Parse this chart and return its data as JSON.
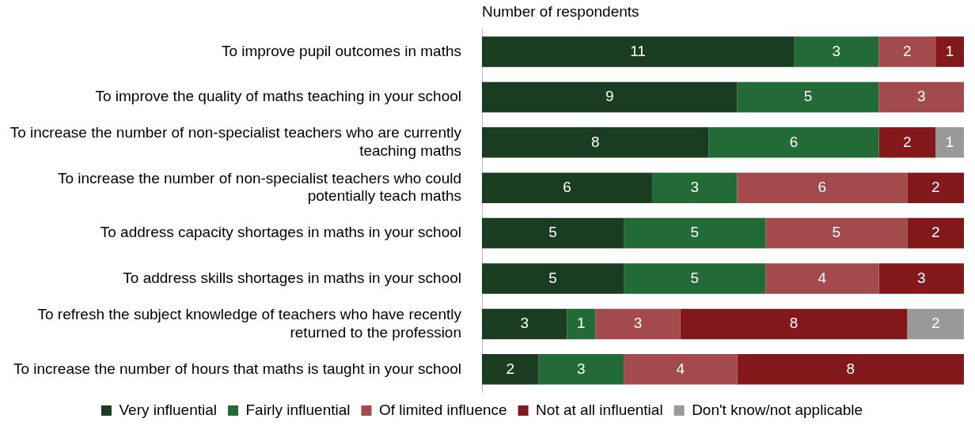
{
  "chart_data": {
    "type": "bar",
    "orientation": "horizontal",
    "stacked": true,
    "xlabel": "Number of respondents",
    "categories": [
      "To improve pupil outcomes in maths",
      "To improve the quality of maths teaching in your school",
      "To increase the number of non-specialist teachers who are currently teaching maths",
      "To increase the number of non-specialist teachers who could potentially teach maths",
      "To address capacity shortages in maths in your school",
      "To address skills shortages in maths in your school",
      "To refresh the subject knowledge of teachers who have recently returned to the profession",
      "To increase the number of hours that maths is taught in your school"
    ],
    "series": [
      {
        "name": "Very influential",
        "color": "#1a3d22",
        "values": [
          11,
          9,
          8,
          6,
          5,
          5,
          3,
          2
        ]
      },
      {
        "name": "Fairly influential",
        "color": "#226b36",
        "values": [
          3,
          5,
          6,
          3,
          5,
          5,
          1,
          3
        ]
      },
      {
        "name": "Of limited influence",
        "color": "#a34a4d",
        "values": [
          2,
          3,
          null,
          6,
          5,
          4,
          3,
          4
        ]
      },
      {
        "name": "Not at all influential",
        "color": "#83181b",
        "values": [
          1,
          null,
          2,
          2,
          2,
          3,
          8,
          8
        ]
      },
      {
        "name": "Don't know/not applicable",
        "color": "#999999",
        "values": [
          null,
          null,
          1,
          null,
          null,
          null,
          2,
          null
        ]
      }
    ],
    "xlim": [
      0,
      17
    ],
    "tick_labels": "y",
    "data_labels": true,
    "grid": false,
    "legend": "bottom"
  }
}
